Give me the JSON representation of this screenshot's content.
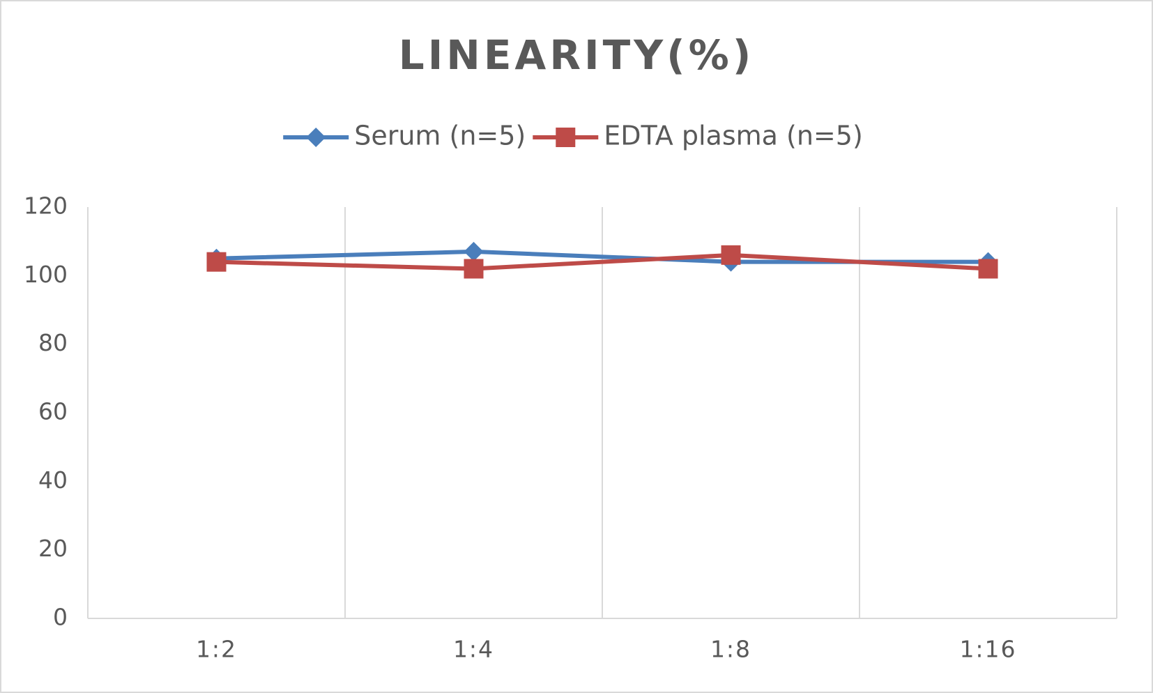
{
  "chart_data": {
    "type": "line",
    "title": "LINEARITY(%)",
    "categories": [
      "1:2",
      "1:4",
      "1:8",
      "1:16"
    ],
    "series": [
      {
        "name": "Serum (n=5)",
        "color": "#4a7ebb",
        "marker": "diamond",
        "values": [
          105,
          107,
          104,
          104
        ]
      },
      {
        "name": "EDTA plasma (n=5)",
        "color": "#be4b48",
        "marker": "square",
        "values": [
          104,
          102,
          106,
          102
        ]
      }
    ],
    "ylim": [
      0,
      120
    ],
    "yticks": [
      0,
      20,
      40,
      60,
      80,
      100,
      120
    ],
    "legend": "top",
    "category_dividers": true
  }
}
